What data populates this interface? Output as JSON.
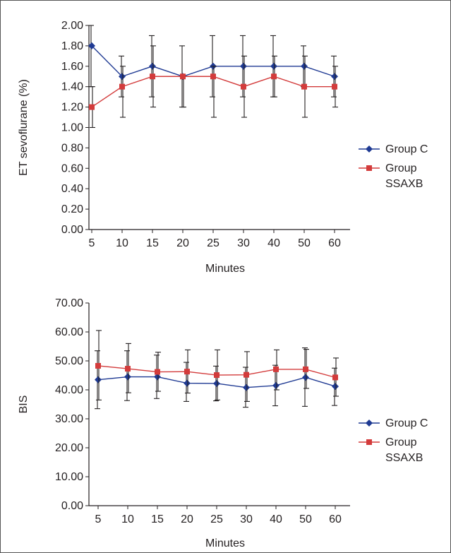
{
  "colors": {
    "group_c": "#1f3a93",
    "group_ssaxb": "#d33b3b",
    "axis": "#231f20",
    "error_bar": "#231f20"
  },
  "chart_data": [
    {
      "type": "line",
      "ylabel": "ET sevoflurane (%)",
      "xlabel": "Minutes",
      "categories": [
        "5",
        "10",
        "15",
        "20",
        "25",
        "30",
        "40",
        "50",
        "60"
      ],
      "ylim": [
        0,
        2
      ],
      "yticks": [
        "0.00",
        "0.20",
        "0.40",
        "0.60",
        "0.80",
        "1.00",
        "1.20",
        "1.40",
        "1.60",
        "1.80",
        "2.00"
      ],
      "legend_position": "right",
      "series": [
        {
          "name": "Group C",
          "marker": "diamond",
          "values": [
            1.8,
            1.5,
            1.6,
            1.5,
            1.6,
            1.6,
            1.6,
            1.6,
            1.5
          ],
          "err_low": [
            1.4,
            1.3,
            1.3,
            1.2,
            1.3,
            1.3,
            1.3,
            1.4,
            1.3
          ],
          "err_high": [
            2.0,
            1.7,
            1.9,
            1.8,
            1.9,
            1.9,
            1.9,
            1.8,
            1.7
          ]
        },
        {
          "name": "Group SSAXB",
          "name_lines": [
            "Group",
            "SSAXB"
          ],
          "marker": "square",
          "values": [
            1.2,
            1.4,
            1.5,
            1.5,
            1.5,
            1.4,
            1.5,
            1.4,
            1.4
          ],
          "err_low": [
            1.0,
            1.1,
            1.2,
            1.2,
            1.1,
            1.1,
            1.3,
            1.1,
            1.2
          ],
          "err_high": [
            1.4,
            1.6,
            1.8,
            1.5,
            1.6,
            1.7,
            1.7,
            1.7,
            1.6
          ]
        }
      ]
    },
    {
      "type": "line",
      "ylabel": "BIS",
      "xlabel": "Minutes",
      "categories": [
        "5",
        "10",
        "15",
        "20",
        "25",
        "30",
        "40",
        "50",
        "60"
      ],
      "ylim": [
        0,
        70
      ],
      "yticks": [
        "0.00",
        "10.00",
        "20.00",
        "30.00",
        "40.00",
        "50.00",
        "60.00",
        "70.00"
      ],
      "legend_position": "right",
      "series": [
        {
          "name": "Group C",
          "marker": "diamond",
          "values": [
            43.5,
            44.5,
            44.5,
            42.3,
            42.2,
            40.8,
            41.5,
            44.3,
            41.2
          ],
          "err_low": [
            33.5,
            36.3,
            37.0,
            36.0,
            36.2,
            34.0,
            34.5,
            34.3,
            34.6
          ],
          "err_high": [
            53.5,
            53.5,
            52.0,
            49.5,
            48.2,
            47.8,
            48.5,
            54.5,
            47.5
          ]
        },
        {
          "name": "Group SSAXB",
          "name_lines": [
            "Group",
            "SSAXB"
          ],
          "marker": "square",
          "values": [
            48.3,
            47.3,
            46.2,
            46.3,
            45.1,
            45.2,
            47.1,
            47.1,
            44.3
          ],
          "err_low": [
            36.5,
            39.0,
            39.5,
            38.9,
            36.5,
            36.0,
            40.0,
            40.5,
            37.8
          ],
          "err_high": [
            60.5,
            56.0,
            53.0,
            53.8,
            53.8,
            53.2,
            53.8,
            54.0,
            51.0
          ]
        }
      ]
    }
  ]
}
